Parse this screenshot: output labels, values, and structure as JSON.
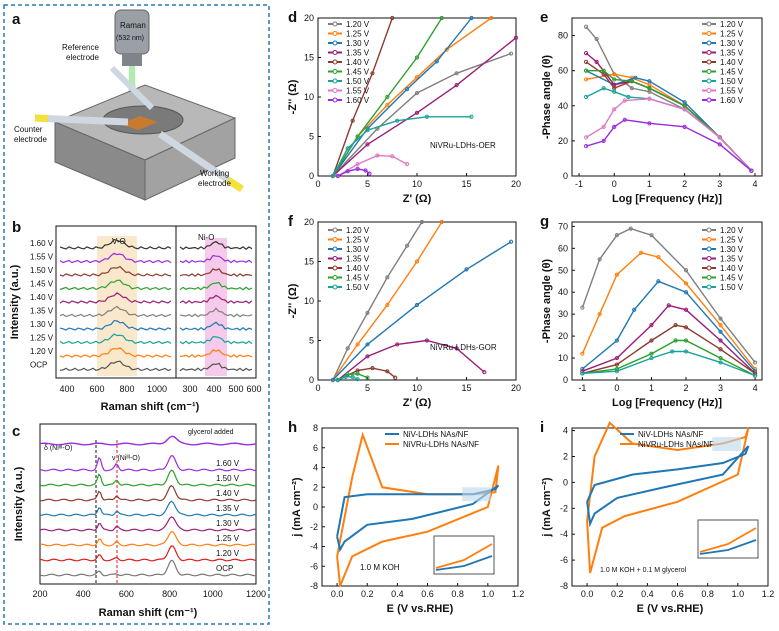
{
  "panels": {
    "a": {
      "label": "a",
      "raman_label": "Raman",
      "laser_label": "(532 nm)",
      "reference_label": "Reference",
      "reference_label2": "electrode",
      "counter_label": "Counter",
      "counter_label2": "electrode",
      "working_label": "Working",
      "working_label2": "electrode"
    },
    "b": {
      "label": "b",
      "vo_label": "V-O",
      "nio_label": "Ni-O"
    },
    "c": {
      "label": "c",
      "delta_label": "δ (Niᴵᴵᴵ-O)",
      "nu_label": "ν (Niᴵᴵᴵ-O)",
      "glycerol_label": "glycerol added"
    },
    "d": {
      "label": "d",
      "note": "NiVRu-LDHs-OER"
    },
    "e": {
      "label": "e"
    },
    "f": {
      "label": "f",
      "note": "NiVRu-LDHs-GOR"
    },
    "g": {
      "label": "g"
    },
    "h": {
      "label": "h",
      "note": "1.0 M KOH"
    },
    "i": {
      "label": "i",
      "note": "1.0 M KOH + 0.1 M glycerol"
    }
  },
  "colors": {
    "border": "#2a7ab8",
    "bg_stage": "#9a9a9a",
    "series": [
      "#7f7f7f",
      "#ff7f0e",
      "#1f77b4",
      "#9b1d7a",
      "#8c3b2f",
      "#2ca02c",
      "#17a398",
      "#e377c2",
      "#9b2bde"
    ],
    "cv_nivru": "#ff7f0e",
    "cv_niv": "#1f77b4"
  },
  "chart_data": [
    {
      "id": "b",
      "type": "line",
      "xlabel": "Raman shift (cm⁻¹)",
      "ylabel": "Intensity (a.u.)",
      "xticks": [
        "400",
        "600",
        "800",
        "1000",
        "300",
        "400",
        "500",
        "600"
      ],
      "series_labels": [
        "1.60 V",
        "1.55 V",
        "1.50 V",
        "1.45 V",
        "1.40 V",
        "1.35 V",
        "1.30 V",
        "1.25 V",
        "1.20 V",
        "OCP"
      ]
    },
    {
      "id": "c",
      "type": "line",
      "xlabel": "Raman shift (cm⁻¹)",
      "ylabel": "Intensity (a.u.)",
      "xlim": [
        200,
        1200
      ],
      "xticks": [
        "200",
        "400",
        "600",
        "800",
        "1000",
        "1200"
      ],
      "series_labels": [
        "1.60 V",
        "1.50 V",
        "1.40 V",
        "1.35 V",
        "1.30 V",
        "1.25 V",
        "1.20 V",
        "OCP"
      ]
    },
    {
      "id": "d",
      "type": "line",
      "title": "",
      "xlabel": "Z' (Ω)",
      "ylabel": "-Z'' (Ω)",
      "xlim": [
        0,
        20
      ],
      "ylim": [
        0,
        20
      ],
      "xticks": [
        "0",
        "5",
        "10",
        "15",
        "20"
      ],
      "yticks": [
        "0",
        "5",
        "10",
        "15",
        "20"
      ],
      "legend": [
        "1.20 V",
        "1.25 V",
        "1.30 V",
        "1.35 V",
        "1.40 V",
        "1.45 V",
        "1.50 V",
        "1.55 V",
        "1.60 V"
      ],
      "series": [
        {
          "name": "1.20 V",
          "x": [
            1.5,
            6,
            10,
            14,
            19.5
          ],
          "y": [
            0,
            6,
            10.5,
            13,
            15.5
          ]
        },
        {
          "name": "1.25 V",
          "x": [
            1.5,
            4,
            7,
            10,
            13,
            17.5
          ],
          "y": [
            0,
            5,
            9,
            12.5,
            16,
            20
          ]
        },
        {
          "name": "1.30 V",
          "x": [
            1.5,
            5,
            9,
            12,
            15.5
          ],
          "y": [
            0,
            6,
            11,
            14.5,
            20
          ]
        },
        {
          "name": "1.35 V",
          "x": [
            1.5,
            5,
            10,
            14,
            20
          ],
          "y": [
            0,
            4,
            8,
            11.5,
            17.5
          ]
        },
        {
          "name": "1.40 V",
          "x": [
            1.5,
            3.5,
            5.5,
            7.5
          ],
          "y": [
            0,
            7,
            13,
            20
          ]
        },
        {
          "name": "1.45 V",
          "x": [
            1.5,
            4,
            7,
            10,
            12.5
          ],
          "y": [
            0,
            5,
            10,
            15,
            20
          ]
        },
        {
          "name": "1.50 V",
          "x": [
            1.5,
            3,
            5,
            8,
            11,
            15.5
          ],
          "y": [
            0,
            3.5,
            5.8,
            7,
            7.5,
            7.5
          ]
        },
        {
          "name": "1.55 V",
          "x": [
            2,
            4,
            6,
            7.5,
            9
          ],
          "y": [
            0,
            1.5,
            2.6,
            2.5,
            1.5
          ]
        },
        {
          "name": "1.60 V",
          "x": [
            2,
            3,
            4,
            4.8,
            5.2
          ],
          "y": [
            0,
            0.6,
            0.9,
            0.7,
            0.3
          ]
        }
      ]
    },
    {
      "id": "e",
      "type": "line",
      "xlabel": "Log [Frequency (Hz)]",
      "ylabel": "-Phase angle (θ)",
      "xlim": [
        -1.2,
        4.2
      ],
      "ylim": [
        0,
        90
      ],
      "xticks": [
        "-1",
        "0",
        "1",
        "2",
        "3",
        "4"
      ],
      "yticks": [
        "0",
        "20",
        "40",
        "60",
        "80"
      ],
      "legend": [
        "1.20 V",
        "1.25 V",
        "1.30 V",
        "1.35 V",
        "1.40 V",
        "1.45 V",
        "1.50 V",
        "1.55 V",
        "1.60 V"
      ],
      "series": [
        {
          "name": "1.20 V",
          "x": [
            -0.8,
            -0.5,
            0,
            0.5,
            1,
            2,
            3,
            3.9
          ],
          "y": [
            85,
            78,
            58,
            50,
            48,
            38,
            22,
            3
          ]
        },
        {
          "name": "1.25 V",
          "x": [
            -0.8,
            0,
            0.5,
            1,
            2,
            3,
            3.9
          ],
          "y": [
            55,
            58,
            56,
            52,
            40,
            22,
            3
          ]
        },
        {
          "name": "1.30 V",
          "x": [
            -0.8,
            0,
            0.6,
            1,
            2,
            3,
            3.9
          ],
          "y": [
            60,
            52,
            56,
            54,
            42,
            22,
            3
          ]
        },
        {
          "name": "1.35 V",
          "x": [
            -0.8,
            -0.5,
            0,
            0.5,
            1,
            2,
            3,
            3.9
          ],
          "y": [
            70,
            65,
            52,
            54,
            50,
            40,
            22,
            3
          ]
        },
        {
          "name": "1.40 V",
          "x": [
            -0.8,
            -0.3,
            0,
            0.5,
            1,
            2,
            3,
            3.9
          ],
          "y": [
            65,
            58,
            50,
            54,
            50,
            40,
            22,
            3
          ]
        },
        {
          "name": "1.45 V",
          "x": [
            -0.8,
            -0.3,
            0,
            0.5,
            1,
            2,
            3,
            3.9
          ],
          "y": [
            60,
            60,
            55,
            54,
            50,
            40,
            22,
            3
          ]
        },
        {
          "name": "1.50 V",
          "x": [
            -0.8,
            -0.3,
            0,
            0.4,
            1,
            2,
            3,
            3.9
          ],
          "y": [
            45,
            50,
            48,
            45,
            44,
            38,
            22,
            3
          ]
        },
        {
          "name": "1.55 V",
          "x": [
            -0.8,
            -0.3,
            0,
            0.3,
            1,
            2,
            3,
            3.9
          ],
          "y": [
            22,
            28,
            38,
            43,
            44,
            38,
            22,
            3
          ]
        },
        {
          "name": "1.60 V",
          "x": [
            -0.8,
            -0.3,
            0,
            0.3,
            1,
            2,
            3,
            3.9
          ],
          "y": [
            17,
            20,
            28,
            32,
            30,
            28,
            18,
            3
          ]
        }
      ]
    },
    {
      "id": "f",
      "type": "line",
      "xlabel": "Z' (Ω)",
      "ylabel": "-Z'' (Ω)",
      "xlim": [
        0,
        20
      ],
      "ylim": [
        0,
        20
      ],
      "xticks": [
        "0",
        "5",
        "10",
        "15",
        "20"
      ],
      "yticks": [
        "0",
        "5",
        "10",
        "15",
        "20"
      ],
      "legend": [
        "1.20 V",
        "1.25 V",
        "1.30 V",
        "1.35 V",
        "1.40 V",
        "1.45 V",
        "1.50 V"
      ],
      "series": [
        {
          "name": "1.20 V",
          "x": [
            1.5,
            3,
            5,
            7,
            9,
            10.5
          ],
          "y": [
            0,
            4,
            8.5,
            13,
            17,
            20
          ]
        },
        {
          "name": "1.25 V",
          "x": [
            1.5,
            4,
            7,
            10,
            12.5
          ],
          "y": [
            0,
            4.5,
            9.5,
            15,
            20
          ]
        },
        {
          "name": "1.30 V",
          "x": [
            1.5,
            5,
            10,
            15,
            19.5
          ],
          "y": [
            0,
            4.5,
            9.5,
            14,
            17.5
          ]
        },
        {
          "name": "1.35 V",
          "x": [
            2,
            5,
            8,
            11,
            14,
            16.8
          ],
          "y": [
            0,
            3,
            4.5,
            5,
            4,
            1
          ]
        },
        {
          "name": "1.40 V",
          "x": [
            2,
            4,
            5.5,
            7,
            7.8
          ],
          "y": [
            0,
            1.2,
            1.5,
            1.1,
            0.3
          ]
        },
        {
          "name": "1.45 V",
          "x": [
            2,
            3,
            4,
            5
          ],
          "y": [
            0,
            0.7,
            0.8,
            0.3
          ]
        },
        {
          "name": "1.50 V",
          "x": [
            2,
            2.8,
            3.5,
            4
          ],
          "y": [
            0,
            0.4,
            0.4,
            0.1
          ]
        }
      ]
    },
    {
      "id": "g",
      "type": "line",
      "xlabel": "Log [Frequency (Hz)]",
      "ylabel": "-Phase angle (θ)",
      "xlim": [
        -1.3,
        4.2
      ],
      "ylim": [
        0,
        72
      ],
      "xticks": [
        "-1",
        "0",
        "1",
        "2",
        "3",
        "4"
      ],
      "yticks": [
        "0",
        "10",
        "20",
        "30",
        "40",
        "50",
        "60",
        "70"
      ],
      "legend": [
        "1.20 V",
        "1.25 V",
        "1.30 V",
        "1.35 V",
        "1.40 V",
        "1.45 V",
        "1.50 V"
      ],
      "series": [
        {
          "name": "1.20 V",
          "x": [
            -1,
            -0.5,
            0,
            0.4,
            1,
            2,
            3,
            4
          ],
          "y": [
            33,
            55,
            66,
            69,
            66,
            50,
            28,
            8
          ]
        },
        {
          "name": "1.25 V",
          "x": [
            -1,
            -0.5,
            0,
            0.7,
            1.2,
            2,
            3,
            4
          ],
          "y": [
            12,
            30,
            48,
            58,
            56,
            44,
            25,
            5
          ]
        },
        {
          "name": "1.30 V",
          "x": [
            -1,
            0,
            0.5,
            1.2,
            2,
            3,
            4
          ],
          "y": [
            5,
            18,
            32,
            45,
            40,
            22,
            4
          ]
        },
        {
          "name": "1.35 V",
          "x": [
            -1,
            0,
            1,
            1.5,
            2,
            3,
            4
          ],
          "y": [
            4,
            10,
            25,
            34,
            32,
            18,
            3
          ]
        },
        {
          "name": "1.40 V",
          "x": [
            -1,
            0,
            1,
            1.7,
            2,
            3,
            4
          ],
          "y": [
            3,
            7,
            18,
            25,
            24,
            14,
            3
          ]
        },
        {
          "name": "1.45 V",
          "x": [
            -1,
            0,
            1,
            1.7,
            2,
            3,
            4
          ],
          "y": [
            3,
            5,
            12,
            18,
            18,
            10,
            2
          ]
        },
        {
          "name": "1.50 V",
          "x": [
            -1,
            0,
            1,
            1.6,
            2,
            3,
            4
          ],
          "y": [
            3,
            4,
            10,
            13,
            13,
            8,
            2
          ]
        }
      ]
    },
    {
      "id": "h",
      "type": "line",
      "xlabel": "E (V vs.RHE)",
      "ylabel": "j (mA cm⁻²)",
      "xlim": [
        -0.1,
        1.2
      ],
      "ylim": [
        -8,
        8
      ],
      "xticks": [
        "0.0",
        "0.2",
        "0.4",
        "0.6",
        "0.8",
        "1.0",
        "1.2"
      ],
      "yticks": [
        "-8",
        "-6",
        "-4",
        "-2",
        "0",
        "2",
        "4",
        "6",
        "8"
      ],
      "legend": [
        "NiV-LDHs NAs/NF",
        "NiVRu-LDHs NAs/NF"
      ],
      "series": [
        {
          "name": "NiVRu-LDHs NAs/NF",
          "x": [
            0,
            0.1,
            0.17,
            0.3,
            0.6,
            0.9,
            1.05,
            1.07,
            1.0,
            0.6,
            0.3,
            0.1,
            0.02,
            0
          ],
          "y": [
            -5,
            3,
            7.3,
            2,
            1.3,
            1.3,
            1.5,
            4.2,
            0,
            -2.5,
            -3.5,
            -5,
            -8,
            -5
          ]
        },
        {
          "name": "NiV-LDHs NAs/NF",
          "x": [
            0,
            0.05,
            0.2,
            0.5,
            0.9,
            1.05,
            1.07,
            0.9,
            0.5,
            0.2,
            0.05,
            0.02,
            0
          ],
          "y": [
            -3,
            1,
            1.3,
            1.3,
            1.3,
            1.8,
            2.2,
            0.3,
            -1.2,
            -1.8,
            -3.5,
            -4.3,
            -3
          ]
        }
      ]
    },
    {
      "id": "i",
      "type": "line",
      "xlabel": "E (V vs.RHE)",
      "ylabel": "j (mA cm⁻²)",
      "xlim": [
        -0.1,
        1.2
      ],
      "ylim": [
        -8,
        4.2
      ],
      "xticks": [
        "0.0",
        "0.2",
        "0.4",
        "0.6",
        "0.8",
        "1.0",
        "1.2"
      ],
      "yticks": [
        "-8",
        "-6",
        "-4",
        "-2",
        "0",
        "2",
        "4"
      ],
      "legend": [
        "NiV-LDHs NAs/NF",
        "NiVRu-LDHs NAs/NF"
      ],
      "series": [
        {
          "name": "NiVRu-LDHs NAs/NF",
          "x": [
            0,
            0.05,
            0.15,
            0.3,
            0.6,
            0.9,
            1.05,
            1.07,
            1.0,
            0.6,
            0.25,
            0.1,
            0.02,
            0
          ],
          "y": [
            -3,
            2,
            4.6,
            3,
            2.5,
            3,
            3.5,
            4.2,
            0.6,
            -1.5,
            -2.6,
            -3.5,
            -7,
            -3
          ]
        },
        {
          "name": "NiV-LDHs NAs/NF",
          "x": [
            0,
            0.05,
            0.3,
            0.6,
            0.9,
            1.05,
            1.07,
            0.9,
            0.5,
            0.2,
            0.05,
            0.02,
            0
          ],
          "y": [
            -1.5,
            -0.2,
            0.6,
            1.0,
            1.5,
            2.2,
            2.8,
            0.6,
            -0.4,
            -1.2,
            -2.4,
            -3.2,
            -1.5
          ]
        }
      ]
    }
  ]
}
